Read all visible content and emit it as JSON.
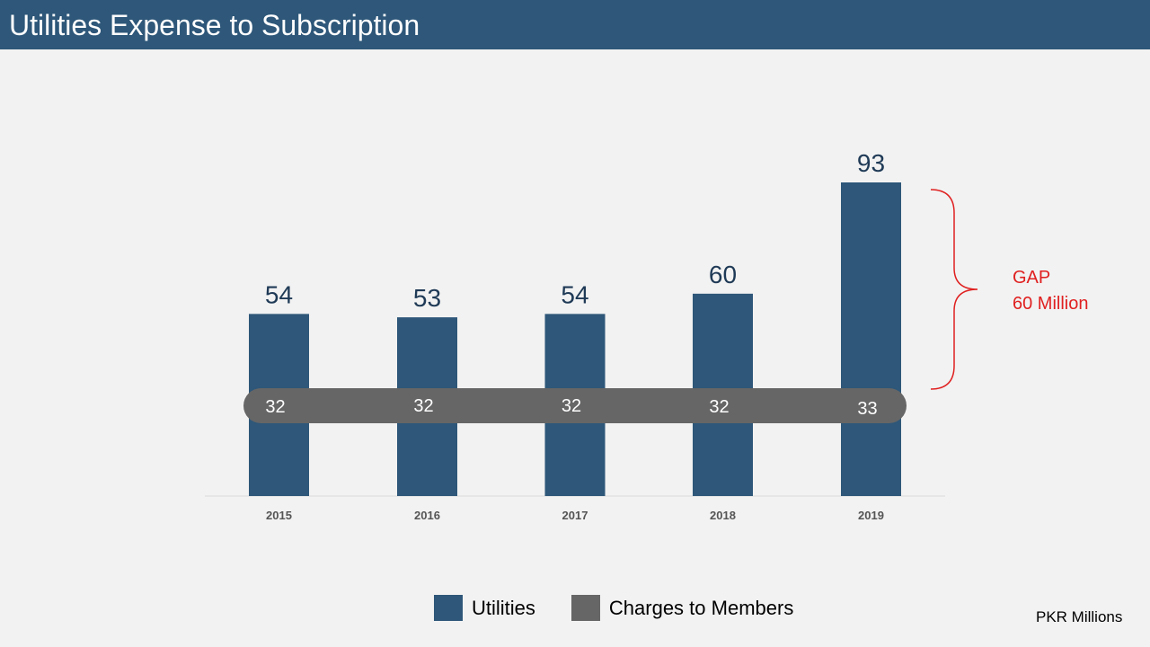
{
  "title": "Utilities Expense to Subscription",
  "units_note": "PKR Millions",
  "colors": {
    "header_bg": "#2e5779",
    "utilities": "#2e5779",
    "charges": "#666666",
    "gap": "#e02020",
    "background": "#f2f2f2"
  },
  "gap_annotation": {
    "line1": "GAP",
    "line2": "60 Million"
  },
  "legend": {
    "items": [
      {
        "label": "Utilities",
        "color": "#2e5779"
      },
      {
        "label": "Charges to Members",
        "color": "#666666"
      }
    ]
  },
  "chart_data": {
    "type": "bar",
    "title": "",
    "xlabel": "",
    "ylabel": "",
    "categories": [
      "2015",
      "2016",
      "2017",
      "2018",
      "2019"
    ],
    "series": [
      {
        "name": "Utilities",
        "values": [
          54,
          53,
          54,
          60,
          93
        ]
      },
      {
        "name": "Charges to Members",
        "values": [
          32,
          32,
          32,
          32,
          33
        ]
      }
    ],
    "ylim": [
      0,
      93
    ],
    "grid": false,
    "legend_position": "bottom"
  }
}
